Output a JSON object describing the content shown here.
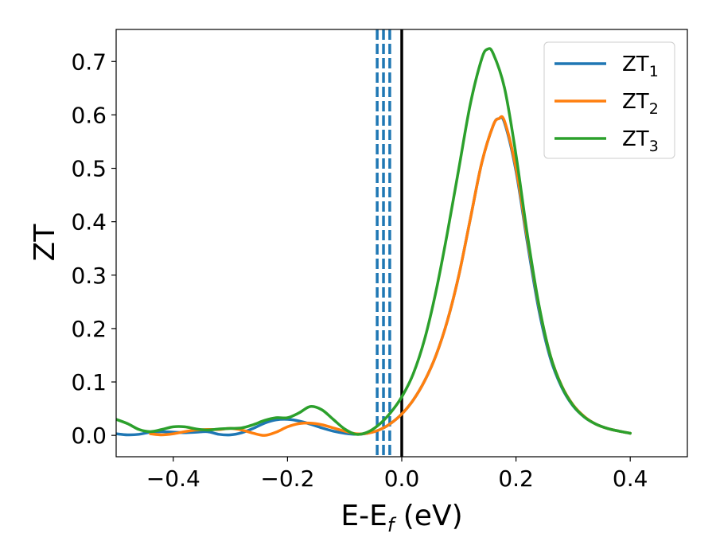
{
  "chart_data": {
    "type": "line",
    "xlabel": "E-E",
    "xlabel_sub": "f",
    "xlabel_unit": " (eV)",
    "ylabel": "ZT",
    "xlim": [
      -0.5,
      0.5
    ],
    "ylim": [
      -0.04,
      0.76
    ],
    "xticks": [
      -0.4,
      -0.2,
      0.0,
      0.2,
      0.4
    ],
    "xtick_labels": [
      "−0.4",
      "−0.2",
      "0.0",
      "0.2",
      "0.4"
    ],
    "yticks": [
      0.0,
      0.1,
      0.2,
      0.3,
      0.4,
      0.5,
      0.6,
      0.7
    ],
    "ytick_labels": [
      "0.0",
      "0.1",
      "0.2",
      "0.3",
      "0.4",
      "0.5",
      "0.6",
      "0.7"
    ],
    "grid": false,
    "legend_position": "top-right",
    "series": [
      {
        "name": "ZT",
        "name_sub": "1",
        "color": "#1f77b4",
        "points": [
          [
            -0.5,
            0.003
          ],
          [
            -0.48,
            0.001
          ],
          [
            -0.46,
            0.002
          ],
          [
            -0.44,
            0.006
          ],
          [
            -0.42,
            0.007
          ],
          [
            -0.4,
            0.006
          ],
          [
            -0.38,
            0.005
          ],
          [
            -0.36,
            0.006
          ],
          [
            -0.34,
            0.007
          ],
          [
            -0.32,
            0.002
          ],
          [
            -0.3,
            0.001
          ],
          [
            -0.28,
            0.005
          ],
          [
            -0.26,
            0.013
          ],
          [
            -0.24,
            0.023
          ],
          [
            -0.22,
            0.029
          ],
          [
            -0.2,
            0.03
          ],
          [
            -0.18,
            0.027
          ],
          [
            -0.16,
            0.021
          ],
          [
            -0.14,
            0.014
          ],
          [
            -0.12,
            0.008
          ],
          [
            -0.1,
            0.004
          ],
          [
            -0.08,
            0.002
          ],
          [
            -0.06,
            0.004
          ],
          [
            -0.04,
            0.01
          ],
          [
            -0.02,
            0.022
          ],
          [
            0.0,
            0.04
          ],
          [
            0.02,
            0.066
          ],
          [
            0.04,
            0.102
          ],
          [
            0.06,
            0.15
          ],
          [
            0.08,
            0.215
          ],
          [
            0.1,
            0.3
          ],
          [
            0.12,
            0.405
          ],
          [
            0.14,
            0.51
          ],
          [
            0.16,
            0.58
          ],
          [
            0.17,
            0.593
          ],
          [
            0.18,
            0.585
          ],
          [
            0.2,
            0.495
          ],
          [
            0.22,
            0.36
          ],
          [
            0.24,
            0.235
          ],
          [
            0.26,
            0.145
          ],
          [
            0.28,
            0.09
          ],
          [
            0.3,
            0.055
          ],
          [
            0.32,
            0.034
          ],
          [
            0.34,
            0.021
          ],
          [
            0.36,
            0.013
          ],
          [
            0.38,
            0.008
          ],
          [
            0.4,
            0.004
          ]
        ]
      },
      {
        "name": "ZT",
        "name_sub": "2",
        "color": "#ff7f0e",
        "points": [
          [
            -0.44,
            0.003
          ],
          [
            -0.42,
            0.001
          ],
          [
            -0.4,
            0.003
          ],
          [
            -0.38,
            0.007
          ],
          [
            -0.36,
            0.01
          ],
          [
            -0.34,
            0.011
          ],
          [
            -0.32,
            0.011
          ],
          [
            -0.3,
            0.013
          ],
          [
            -0.28,
            0.01
          ],
          [
            -0.26,
            0.004
          ],
          [
            -0.24,
            0.0
          ],
          [
            -0.22,
            0.006
          ],
          [
            -0.2,
            0.016
          ],
          [
            -0.18,
            0.022
          ],
          [
            -0.16,
            0.023
          ],
          [
            -0.14,
            0.02
          ],
          [
            -0.12,
            0.014
          ],
          [
            -0.1,
            0.008
          ],
          [
            -0.08,
            0.003
          ],
          [
            -0.06,
            0.004
          ],
          [
            -0.04,
            0.01
          ],
          [
            -0.02,
            0.022
          ],
          [
            0.0,
            0.04
          ],
          [
            0.02,
            0.066
          ],
          [
            0.04,
            0.102
          ],
          [
            0.06,
            0.15
          ],
          [
            0.08,
            0.215
          ],
          [
            0.1,
            0.3
          ],
          [
            0.12,
            0.405
          ],
          [
            0.14,
            0.51
          ],
          [
            0.16,
            0.58
          ],
          [
            0.17,
            0.593
          ],
          [
            0.18,
            0.588
          ],
          [
            0.2,
            0.5
          ],
          [
            0.22,
            0.368
          ],
          [
            0.24,
            0.243
          ],
          [
            0.26,
            0.15
          ],
          [
            0.28,
            0.093
          ],
          [
            0.3,
            0.057
          ],
          [
            0.32,
            0.035
          ],
          [
            0.34,
            0.021
          ],
          [
            0.36,
            0.013
          ],
          [
            0.38,
            0.008
          ],
          [
            0.4,
            0.004
          ]
        ]
      },
      {
        "name": "ZT",
        "name_sub": "3",
        "color": "#2ca02c",
        "points": [
          [
            -0.5,
            0.03
          ],
          [
            -0.48,
            0.022
          ],
          [
            -0.46,
            0.011
          ],
          [
            -0.44,
            0.007
          ],
          [
            -0.42,
            0.011
          ],
          [
            -0.4,
            0.016
          ],
          [
            -0.38,
            0.016
          ],
          [
            -0.36,
            0.012
          ],
          [
            -0.34,
            0.01
          ],
          [
            -0.32,
            0.012
          ],
          [
            -0.3,
            0.013
          ],
          [
            -0.28,
            0.014
          ],
          [
            -0.26,
            0.02
          ],
          [
            -0.24,
            0.028
          ],
          [
            -0.22,
            0.033
          ],
          [
            -0.2,
            0.033
          ],
          [
            -0.18,
            0.042
          ],
          [
            -0.16,
            0.054
          ],
          [
            -0.14,
            0.048
          ],
          [
            -0.12,
            0.03
          ],
          [
            -0.1,
            0.012
          ],
          [
            -0.08,
            0.002
          ],
          [
            -0.06,
            0.006
          ],
          [
            -0.04,
            0.02
          ],
          [
            -0.02,
            0.042
          ],
          [
            0.0,
            0.072
          ],
          [
            0.02,
            0.115
          ],
          [
            0.04,
            0.18
          ],
          [
            0.06,
            0.27
          ],
          [
            0.08,
            0.38
          ],
          [
            0.1,
            0.5
          ],
          [
            0.12,
            0.62
          ],
          [
            0.14,
            0.705
          ],
          [
            0.15,
            0.723
          ],
          [
            0.16,
            0.715
          ],
          [
            0.18,
            0.65
          ],
          [
            0.2,
            0.525
          ],
          [
            0.22,
            0.375
          ],
          [
            0.24,
            0.245
          ],
          [
            0.26,
            0.15
          ],
          [
            0.28,
            0.092
          ],
          [
            0.3,
            0.056
          ],
          [
            0.32,
            0.034
          ],
          [
            0.34,
            0.021
          ],
          [
            0.36,
            0.013
          ],
          [
            0.38,
            0.008
          ],
          [
            0.4,
            0.004
          ]
        ]
      }
    ],
    "vlines": [
      {
        "x": -0.043,
        "color": "#1f77b4",
        "style": "dashed"
      },
      {
        "x": -0.032,
        "color": "#1f77b4",
        "style": "dashed"
      },
      {
        "x": -0.021,
        "color": "#1f77b4",
        "style": "dashed"
      },
      {
        "x": 0.0,
        "color": "#000000",
        "style": "solid"
      }
    ]
  }
}
